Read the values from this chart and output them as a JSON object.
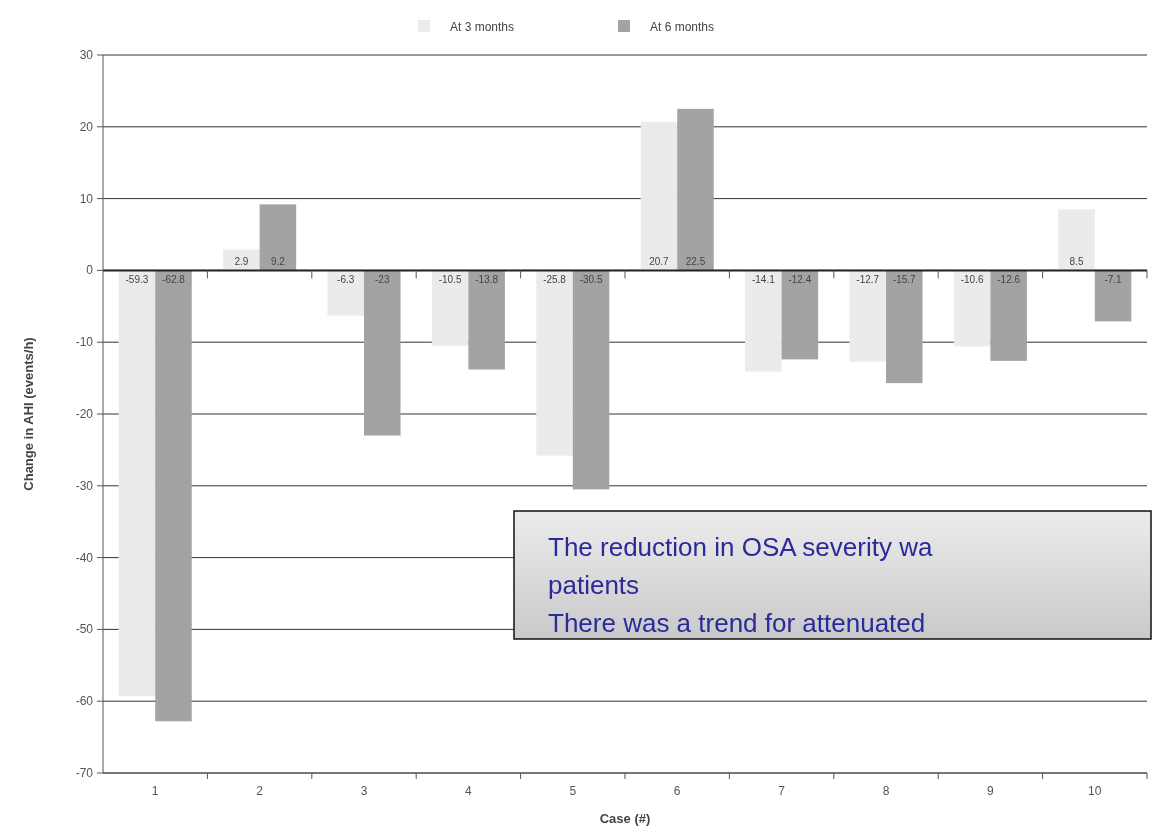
{
  "chart_data": {
    "type": "bar",
    "xlabel": "Case (#)",
    "ylabel": "Change in AHI (events/h)",
    "categories": [
      "1",
      "2",
      "3",
      "4",
      "5",
      "6",
      "7",
      "8",
      "9",
      "10"
    ],
    "series": [
      {
        "name": "At 3 months",
        "color": "#ebebeb",
        "values": [
          -59.3,
          2.9,
          -6.3,
          -10.5,
          -25.8,
          20.7,
          -14.1,
          -12.7,
          -10.6,
          8.5
        ]
      },
      {
        "name": "At 6 months",
        "color": "#a3a3a3",
        "values": [
          -62.8,
          9.2,
          -23,
          -13.8,
          -30.5,
          22.5,
          -12.4,
          -15.7,
          -12.6,
          -7.1
        ]
      }
    ],
    "ylim": [
      -70,
      30
    ],
    "yticks": [
      -70,
      -60,
      -50,
      -40,
      -30,
      -20,
      -10,
      0,
      10,
      20,
      30
    ],
    "grid": "y",
    "legend": "top",
    "data_labels": true,
    "annotations": [
      "The reduction in OSA severity wa",
      "patients",
      "There was a trend for attenuated"
    ]
  }
}
